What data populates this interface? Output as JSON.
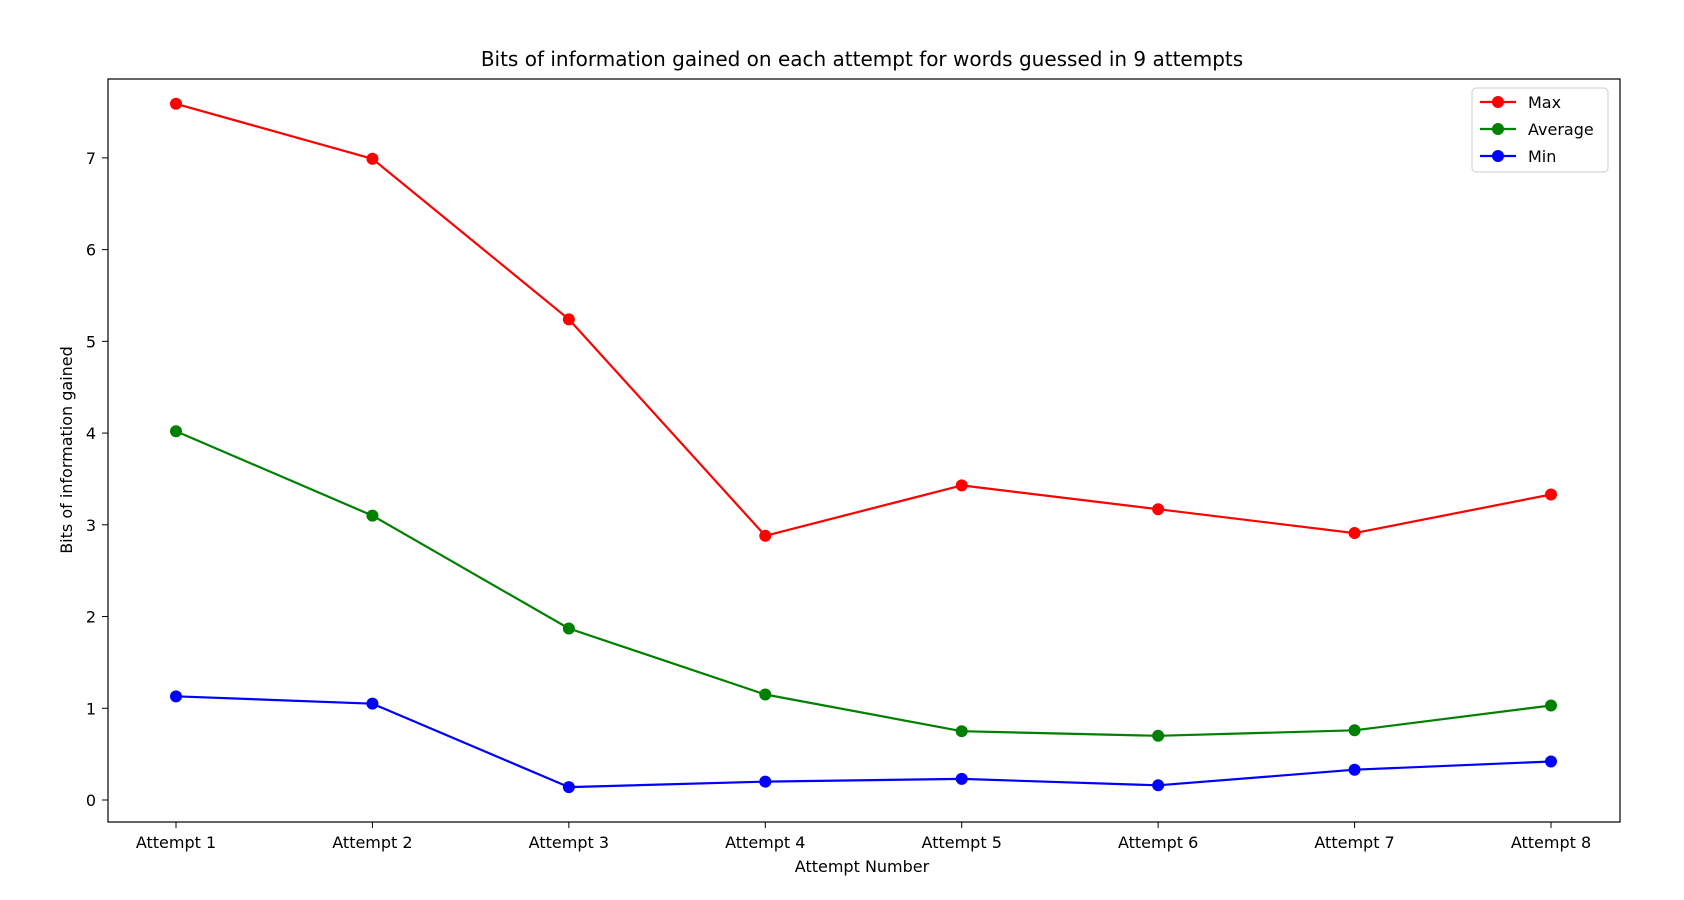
{
  "chart_data": {
    "type": "line",
    "title": "Bits of information gained on each attempt for words guessed in 9 attempts",
    "xlabel": "Attempt Number",
    "ylabel": "Bits of information gained",
    "categories": [
      "Attempt 1",
      "Attempt 2",
      "Attempt 3",
      "Attempt 4",
      "Attempt 5",
      "Attempt 6",
      "Attempt 7",
      "Attempt 8"
    ],
    "yticks": [
      0,
      1,
      2,
      3,
      4,
      5,
      6,
      7
    ],
    "ylim": [
      -0.24,
      7.86
    ],
    "grid": false,
    "legend_position": "top-right",
    "series": [
      {
        "name": "Max",
        "color": "#ff0000",
        "values": [
          7.59,
          6.99,
          5.24,
          2.88,
          3.43,
          3.17,
          2.91,
          3.33
        ]
      },
      {
        "name": "Average",
        "color": "#008000",
        "values": [
          4.02,
          3.1,
          1.87,
          1.15,
          0.75,
          0.7,
          0.76,
          1.03
        ]
      },
      {
        "name": "Min",
        "color": "#0000ff",
        "values": [
          1.13,
          1.05,
          0.14,
          0.2,
          0.23,
          0.16,
          0.33,
          0.42
        ]
      }
    ]
  }
}
